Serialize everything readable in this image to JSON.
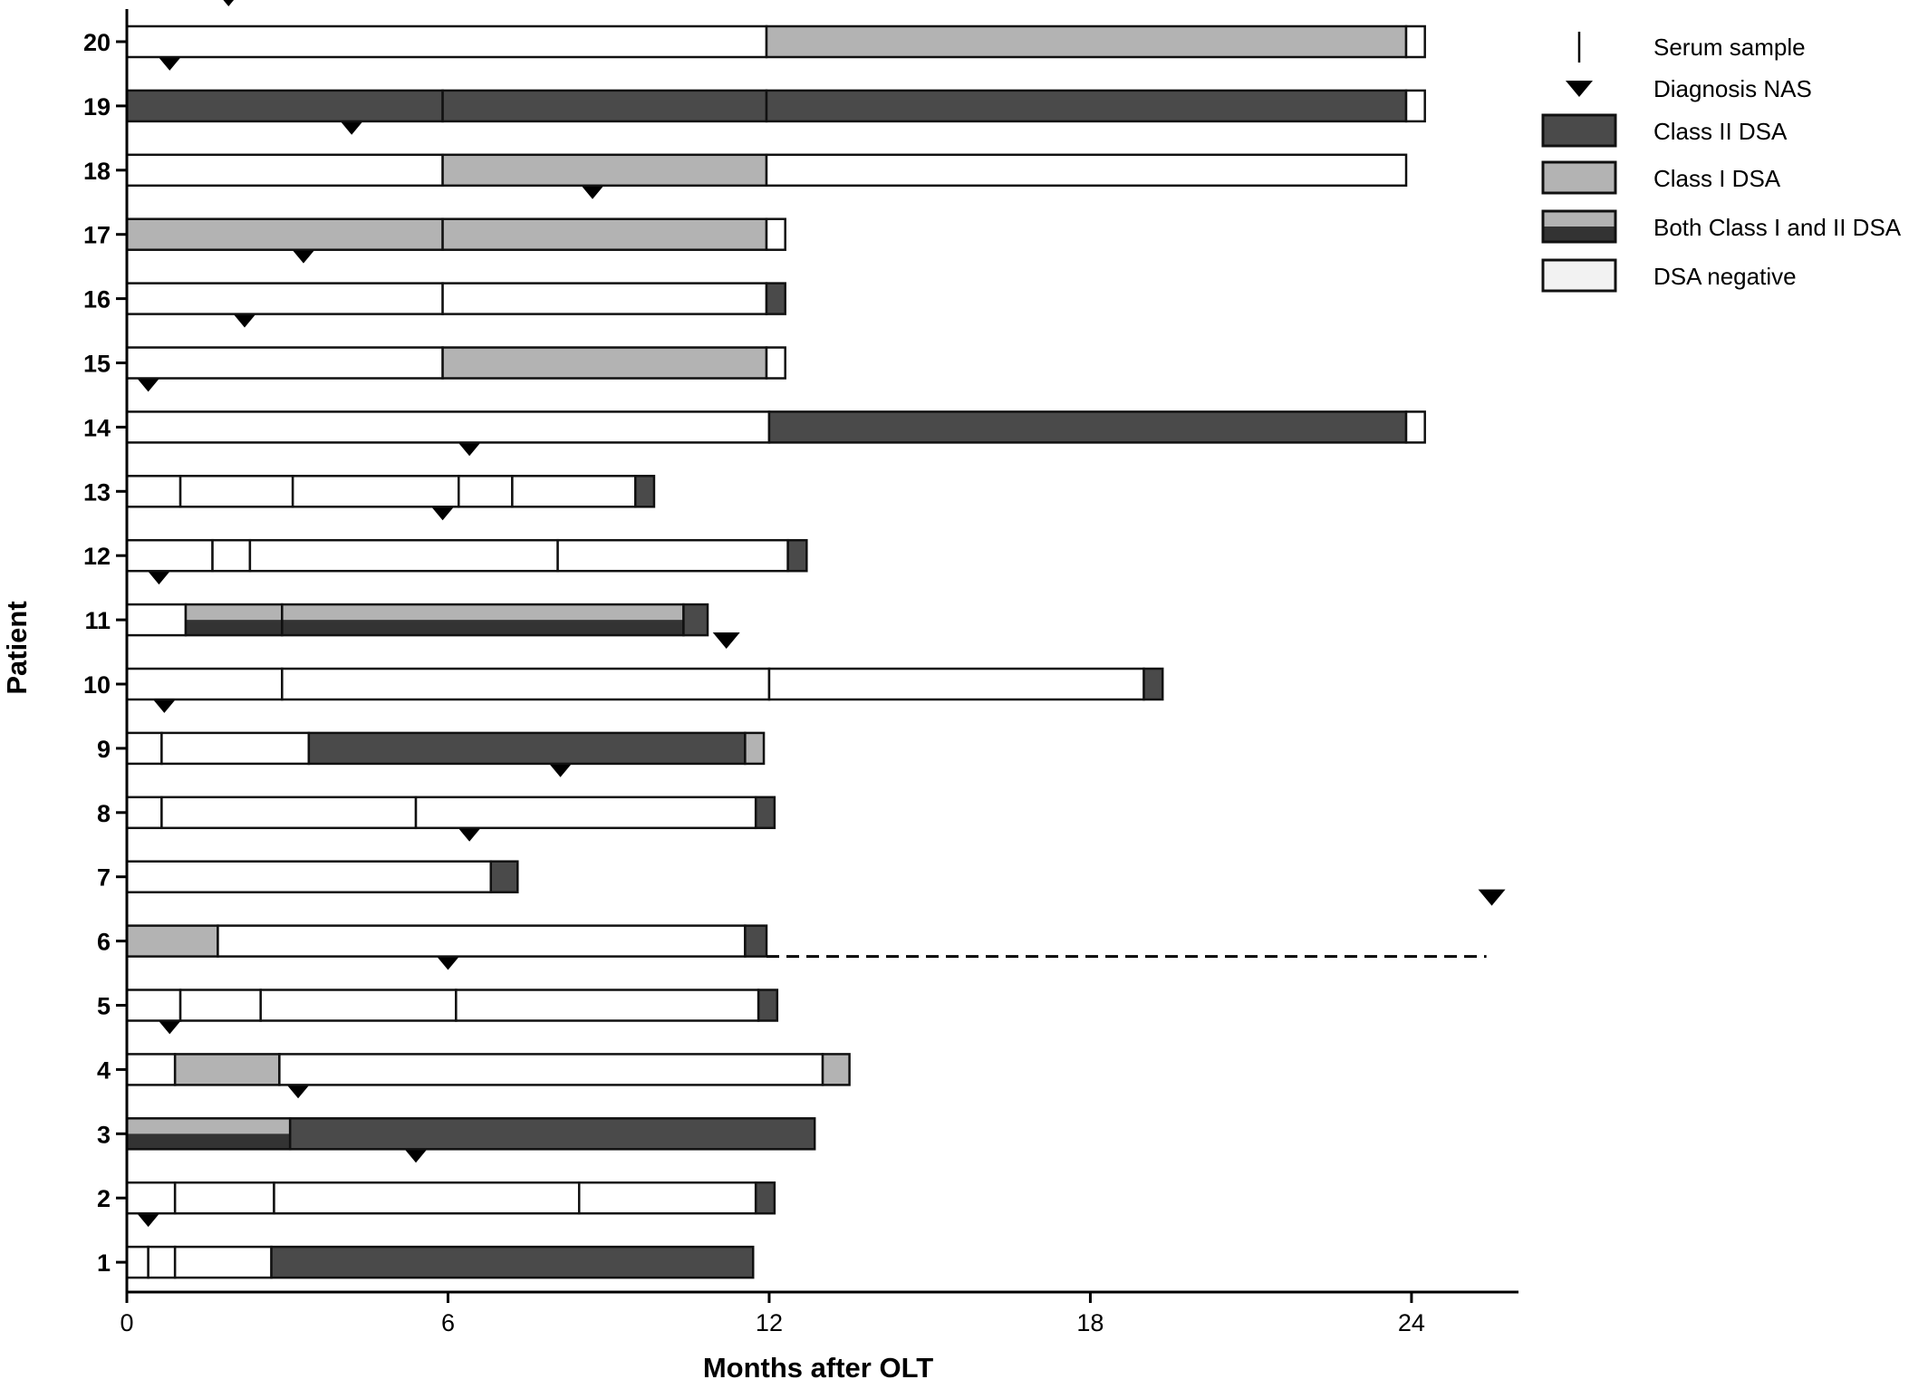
{
  "chart_data": {
    "type": "bar",
    "xlabel": "Months after OLT",
    "ylabel": "Patient",
    "xlim": [
      0,
      26.2
    ],
    "xticks": [
      "0",
      "6",
      "12",
      "18",
      "24"
    ],
    "colors": {
      "class_ii": "#4a4a4a",
      "class_i": "#b3b3b3",
      "negative": "#ffffff",
      "outline": "#111111"
    },
    "legend": {
      "position": "top-right",
      "items": [
        {
          "kind": "sample",
          "label": "Serum sample"
        },
        {
          "kind": "diagnosis",
          "label": "Diagnosis NAS"
        },
        {
          "kind": "class_ii",
          "label": "Class II DSA"
        },
        {
          "kind": "class_i",
          "label": "Class I DSA"
        },
        {
          "kind": "both",
          "label": "Both Class I and II DSA"
        },
        {
          "kind": "negative",
          "label": "DSA negative"
        }
      ]
    },
    "patients": [
      {
        "label": "1",
        "diagnosis": 0.4,
        "segments": [
          [
            0,
            0.4,
            "neg"
          ],
          [
            0.4,
            0.9,
            "neg"
          ],
          [
            0.9,
            2.7,
            "neg"
          ],
          [
            2.7,
            11.7,
            "ii"
          ]
        ]
      },
      {
        "label": "2",
        "diagnosis": 5.4,
        "segments": [
          [
            0,
            0.9,
            "neg"
          ],
          [
            0.9,
            2.75,
            "neg"
          ],
          [
            2.75,
            8.45,
            "neg"
          ],
          [
            8.45,
            11.75,
            "neg"
          ],
          [
            11.75,
            12.1,
            "ii"
          ]
        ]
      },
      {
        "label": "3",
        "diagnosis": 3.2,
        "segments": [
          [
            0,
            3.05,
            "both"
          ],
          [
            3.05,
            12.85,
            "ii"
          ]
        ]
      },
      {
        "label": "4",
        "diagnosis": 0.8,
        "segments": [
          [
            0,
            0.9,
            "neg"
          ],
          [
            0.9,
            2.85,
            "i"
          ],
          [
            2.85,
            13.0,
            "neg"
          ],
          [
            13.0,
            13.5,
            "i"
          ]
        ]
      },
      {
        "label": "5",
        "diagnosis": 6.0,
        "segments": [
          [
            0,
            1.0,
            "neg"
          ],
          [
            1.0,
            2.5,
            "neg"
          ],
          [
            2.5,
            6.15,
            "neg"
          ],
          [
            6.15,
            11.8,
            "neg"
          ],
          [
            11.8,
            12.15,
            "ii"
          ]
        ]
      },
      {
        "label": "6",
        "diagnosis": 25.5,
        "segments": [
          [
            0,
            1.7,
            "i"
          ],
          [
            1.7,
            11.55,
            "neg"
          ],
          [
            11.55,
            11.95,
            "ii"
          ]
        ],
        "followup_end": 25.4
      },
      {
        "label": "7",
        "diagnosis": 6.4,
        "segments": [
          [
            0,
            6.8,
            "neg"
          ],
          [
            6.8,
            7.3,
            "ii"
          ]
        ]
      },
      {
        "label": "8",
        "diagnosis": 8.1,
        "segments": [
          [
            0,
            0.65,
            "neg"
          ],
          [
            0.65,
            5.4,
            "neg"
          ],
          [
            5.4,
            11.75,
            "neg"
          ],
          [
            11.75,
            12.1,
            "ii"
          ]
        ]
      },
      {
        "label": "9",
        "diagnosis": 0.7,
        "segments": [
          [
            0,
            0.65,
            "neg"
          ],
          [
            0.65,
            3.4,
            "neg"
          ],
          [
            3.4,
            11.55,
            "ii"
          ],
          [
            11.55,
            11.9,
            "i"
          ]
        ]
      },
      {
        "label": "10",
        "diagnosis": 11.2,
        "segments": [
          [
            0,
            2.9,
            "neg"
          ],
          [
            2.9,
            12.0,
            "neg"
          ],
          [
            12.0,
            19.0,
            "neg"
          ],
          [
            19.0,
            19.35,
            "ii"
          ]
        ]
      },
      {
        "label": "11",
        "diagnosis": 0.6,
        "segments": [
          [
            0,
            1.1,
            "neg"
          ],
          [
            1.1,
            2.9,
            "both"
          ],
          [
            2.9,
            10.4,
            "both"
          ],
          [
            10.4,
            10.85,
            "ii"
          ]
        ]
      },
      {
        "label": "12",
        "diagnosis": 5.9,
        "segments": [
          [
            0,
            1.6,
            "neg"
          ],
          [
            1.6,
            2.3,
            "neg"
          ],
          [
            2.3,
            8.05,
            "neg"
          ],
          [
            8.05,
            12.35,
            "neg"
          ],
          [
            12.35,
            12.7,
            "ii"
          ]
        ]
      },
      {
        "label": "13",
        "diagnosis": 6.4,
        "segments": [
          [
            0,
            1.0,
            "neg"
          ],
          [
            1.0,
            3.1,
            "neg"
          ],
          [
            3.1,
            6.2,
            "neg"
          ],
          [
            6.2,
            7.2,
            "neg"
          ],
          [
            7.2,
            9.5,
            "neg"
          ],
          [
            9.5,
            9.85,
            "ii"
          ]
        ]
      },
      {
        "label": "14",
        "diagnosis": 0.4,
        "segments": [
          [
            0,
            12.0,
            "neg"
          ],
          [
            12.0,
            23.9,
            "ii"
          ],
          [
            23.9,
            24.25,
            "neg"
          ]
        ]
      },
      {
        "label": "15",
        "diagnosis": 2.2,
        "segments": [
          [
            0,
            5.9,
            "neg"
          ],
          [
            5.9,
            11.95,
            "i"
          ],
          [
            11.95,
            12.3,
            "neg"
          ]
        ]
      },
      {
        "label": "16",
        "diagnosis": 3.3,
        "segments": [
          [
            0,
            5.9,
            "neg"
          ],
          [
            5.9,
            11.95,
            "neg"
          ],
          [
            11.95,
            12.3,
            "ii"
          ]
        ]
      },
      {
        "label": "17",
        "diagnosis": 8.7,
        "segments": [
          [
            0,
            5.9,
            "i"
          ],
          [
            5.9,
            11.95,
            "i"
          ],
          [
            11.95,
            12.3,
            "neg"
          ]
        ]
      },
      {
        "label": "18",
        "diagnosis": 4.2,
        "segments": [
          [
            0,
            5.9,
            "neg"
          ],
          [
            5.9,
            11.95,
            "i"
          ],
          [
            11.95,
            23.9,
            "neg"
          ]
        ]
      },
      {
        "label": "19",
        "diagnosis": 0.8,
        "segments": [
          [
            0,
            5.9,
            "ii"
          ],
          [
            5.9,
            11.95,
            "ii"
          ],
          [
            11.95,
            23.9,
            "ii"
          ],
          [
            23.9,
            24.25,
            "neg"
          ]
        ]
      },
      {
        "label": "20",
        "diagnosis": 1.9,
        "segments": [
          [
            0,
            11.95,
            "neg"
          ],
          [
            11.95,
            23.9,
            "i"
          ],
          [
            23.9,
            24.25,
            "neg"
          ]
        ]
      }
    ]
  }
}
